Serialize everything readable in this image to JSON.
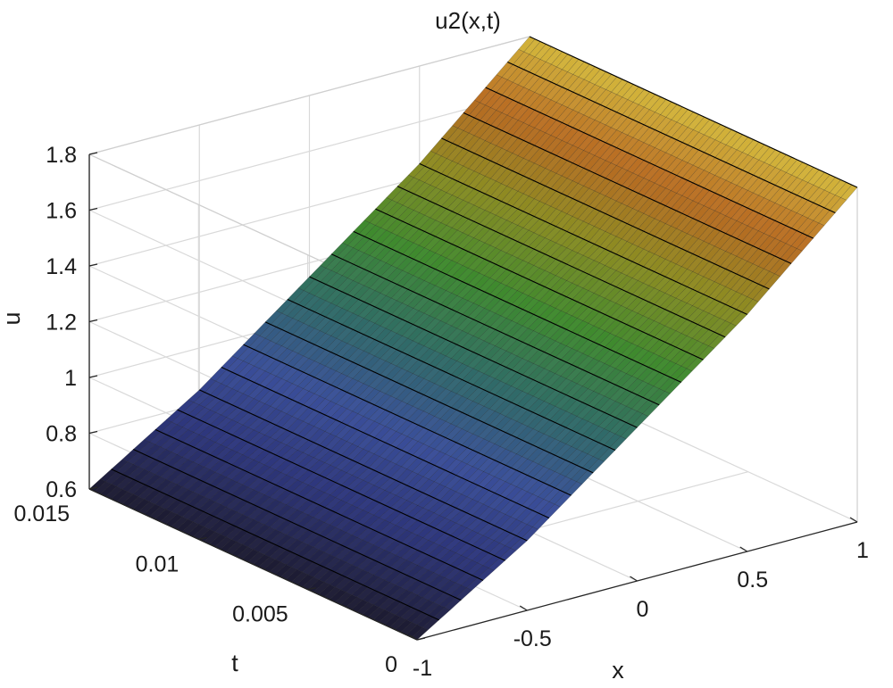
{
  "chart_data": {
    "type": "surface",
    "title": "u2(x,t)",
    "xlabel": "x",
    "ylabel": "t",
    "zlabel": "u",
    "x_ticks": [
      "-1",
      "-0.5",
      "0",
      "0.5",
      "1"
    ],
    "t_ticks": [
      "0",
      "0.005",
      "0.01",
      "0.015"
    ],
    "z_ticks": [
      "0.6",
      "0.8",
      "1",
      "1.2",
      "1.4",
      "1.6",
      "1.8"
    ],
    "xlim": [
      -1,
      1
    ],
    "tlim": [
      0,
      0.015
    ],
    "zlim": [
      0.6,
      1.8
    ],
    "grid": true,
    "box": true,
    "colormap": [
      "#1c1a2e",
      "#2d357a",
      "#3a4f9a",
      "#2f6c66",
      "#3f8a2e",
      "#8c8c22",
      "#b86a22",
      "#d4b83c"
    ],
    "edge_color": "#000000",
    "x": [
      -1,
      -0.5,
      0,
      0.5,
      1
    ],
    "t": [
      0,
      0.005,
      0.01,
      0.015
    ],
    "u_at_t": [
      {
        "t": 0,
        "values": [
          0.6,
          0.85,
          1.15,
          1.45,
          1.8
        ]
      },
      {
        "t": 0.005,
        "values": [
          0.6,
          0.85,
          1.15,
          1.45,
          1.8
        ]
      },
      {
        "t": 0.01,
        "values": [
          0.6,
          0.85,
          1.15,
          1.45,
          1.8
        ]
      },
      {
        "t": 0.015,
        "values": [
          0.6,
          0.85,
          1.15,
          1.45,
          1.8
        ]
      }
    ]
  }
}
